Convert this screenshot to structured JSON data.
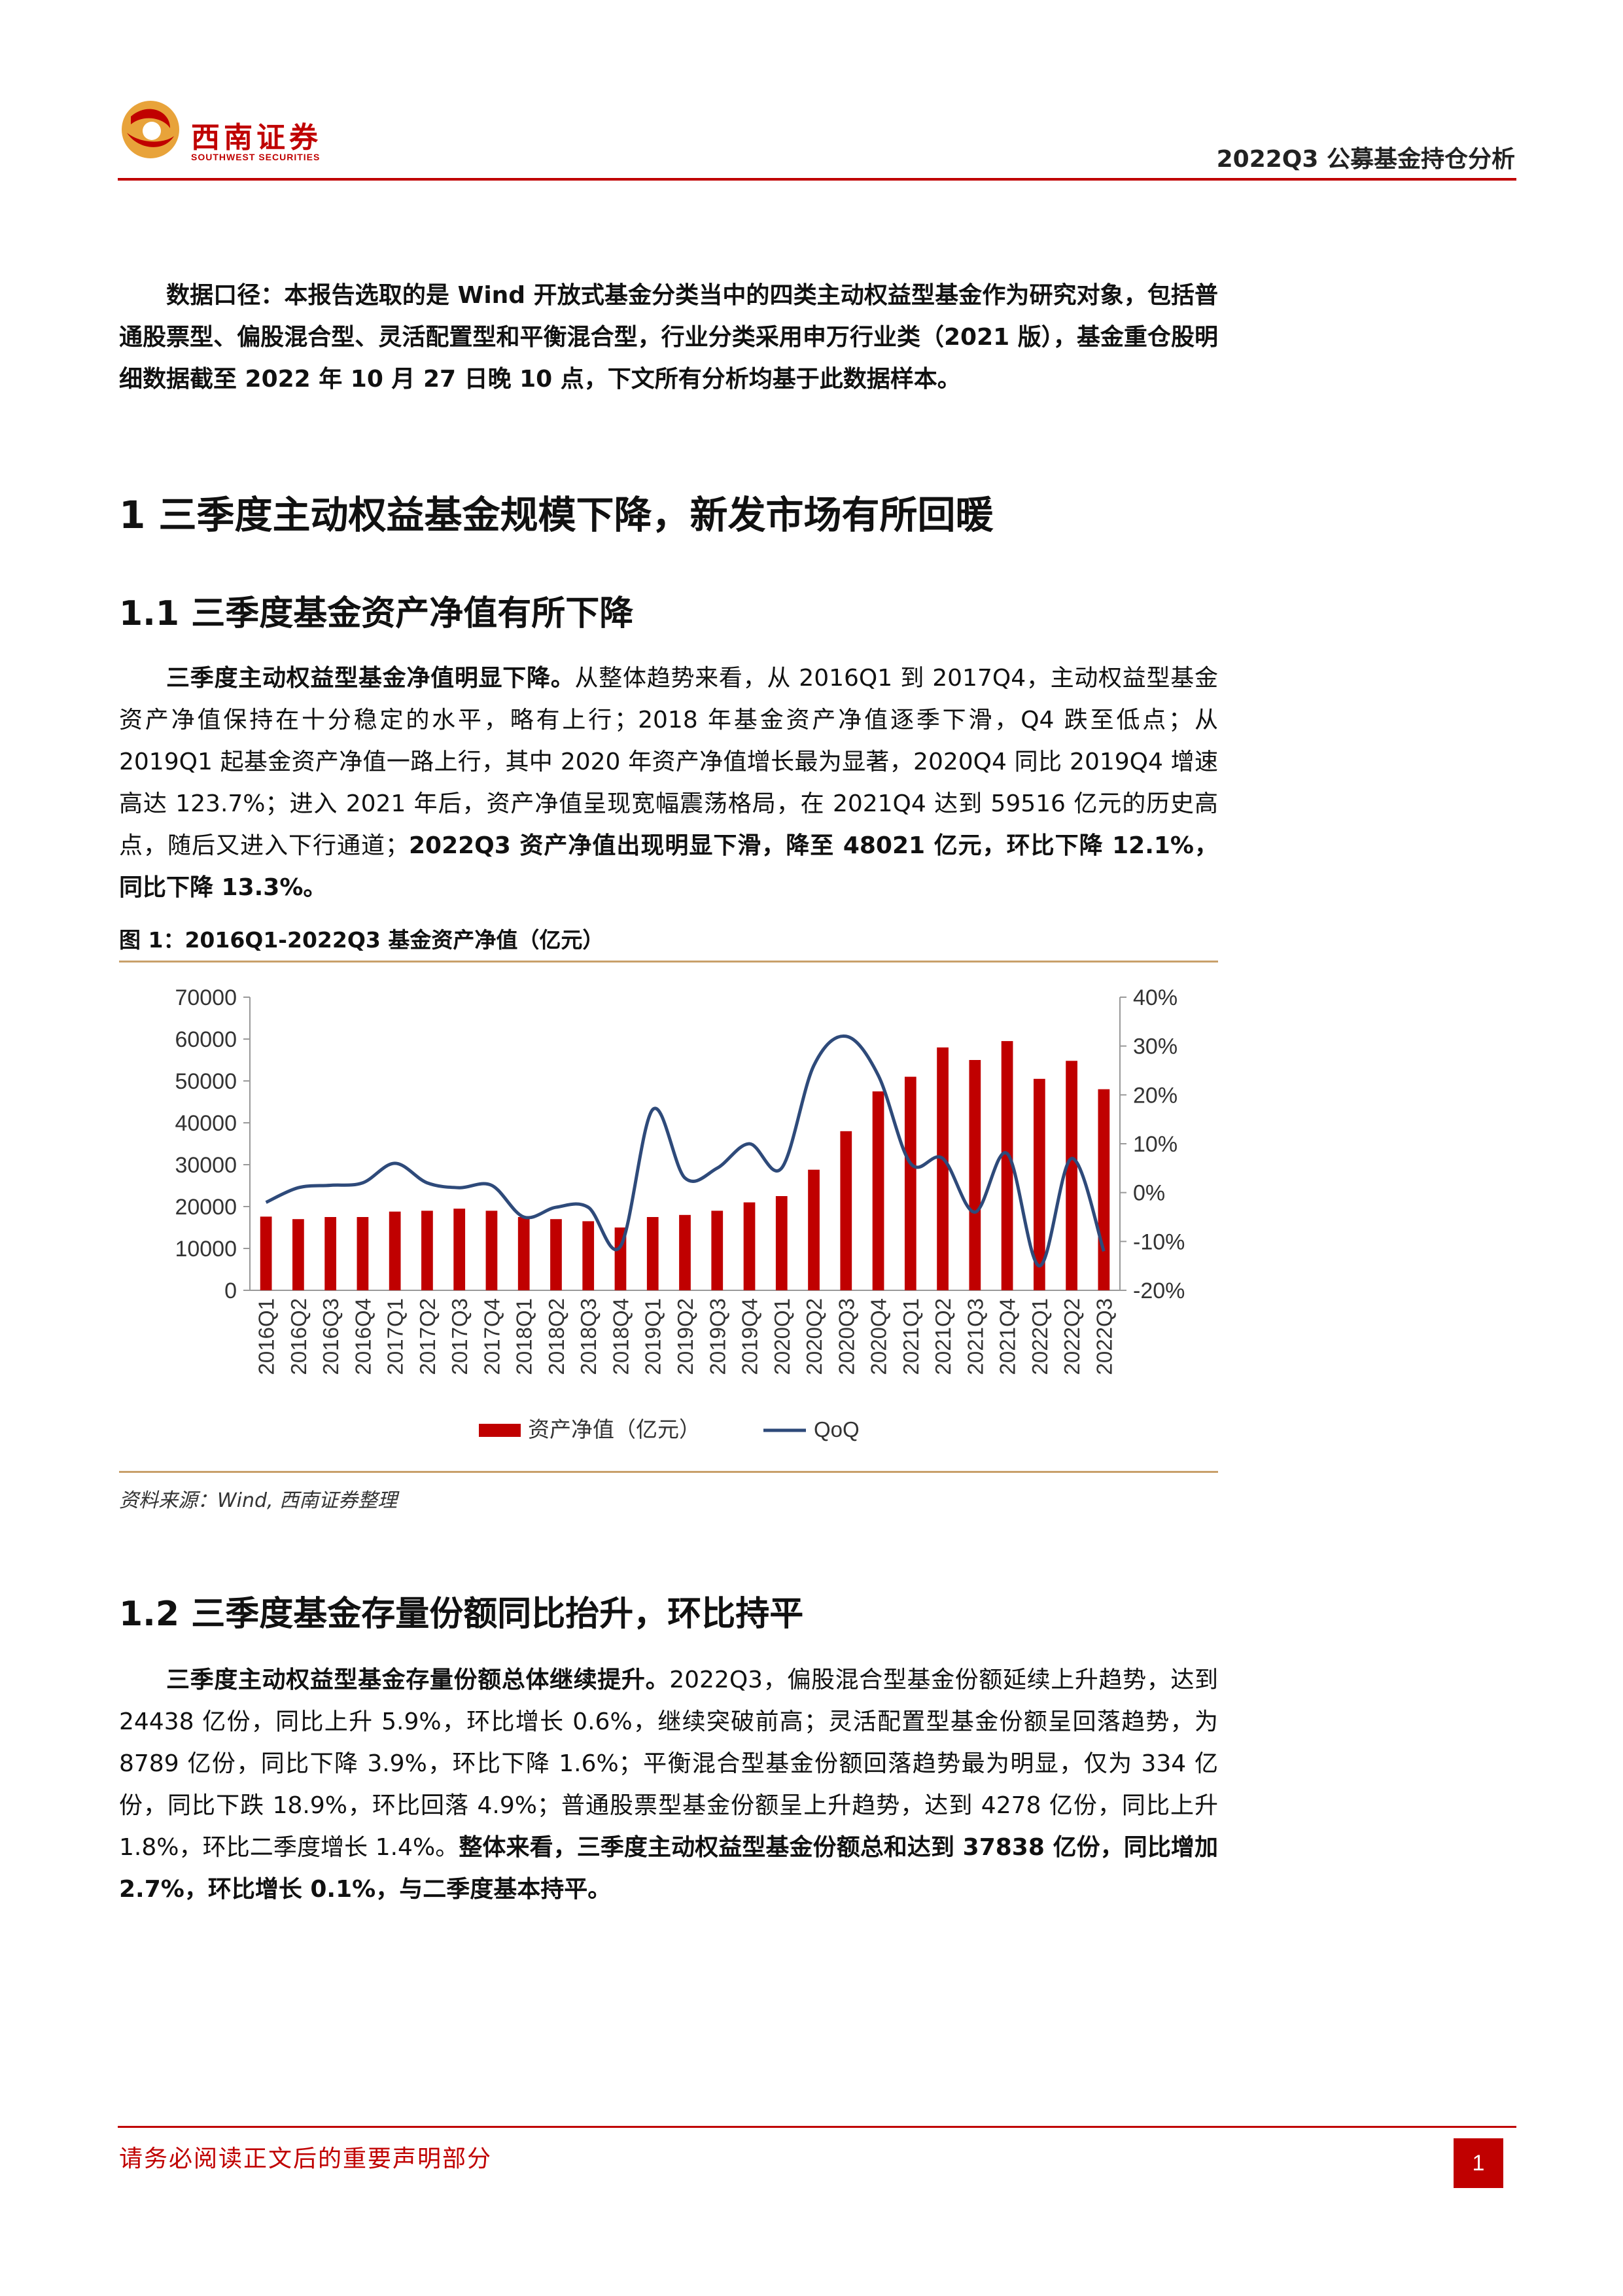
{
  "header": {
    "logo_cn": "西南证券",
    "logo_en": "SOUTHWEST SECURITIES",
    "report_title": "2022Q3 公募基金持仓分析"
  },
  "intro": {
    "text": "数据口径：本报告选取的是 Wind 开放式基金分类当中的四类主动权益型基金作为研究对象，包括普通股票型、偏股混合型、灵活配置型和平衡混合型，行业分类采用申万行业类（2021 版），基金重仓股明细数据截至 2022 年 10 月 27 日晚 10 点，下文所有分析均基于此数据样本。"
  },
  "section1": {
    "title": "1  三季度主动权益基金规模下降，新发市场有所回暖"
  },
  "section1_1": {
    "title": "1.1 三季度基金资产净值有所下降",
    "lead": "三季度主动权益型基金净值明显下降。",
    "body": "从整体趋势来看，从 2016Q1 到 2017Q4，主动权益型基金资产净值保持在十分稳定的水平，略有上行；2018 年基金资产净值逐季下滑，Q4 跌至低点；从 2019Q1 起基金资产净值一路上行，其中 2020 年资产净值增长最为显著，2020Q4 同比 2019Q4 增速高达 123.7%；进入 2021 年后，资产净值呈现宽幅震荡格局，在 2021Q4 达到 59516 亿元的历史高点，随后又进入下行通道；",
    "tail": "2022Q3 资产净值出现明显下滑，降至 48021 亿元，环比下降 12.1%，同比下降 13.3%。"
  },
  "figure1": {
    "title": "图 1：2016Q1-2022Q3 基金资产净值（亿元）",
    "source": "资料来源：Wind, 西南证券整理"
  },
  "chart_data": {
    "type": "bar",
    "categories": [
      "2016Q1",
      "2016Q2",
      "2016Q3",
      "2016Q4",
      "2017Q1",
      "2017Q2",
      "2017Q3",
      "2017Q4",
      "2018Q1",
      "2018Q2",
      "2018Q3",
      "2018Q4",
      "2019Q1",
      "2019Q2",
      "2019Q3",
      "2019Q4",
      "2020Q1",
      "2020Q2",
      "2020Q3",
      "2020Q4",
      "2021Q1",
      "2021Q2",
      "2021Q3",
      "2021Q4",
      "2022Q1",
      "2022Q2",
      "2022Q3"
    ],
    "series": [
      {
        "name": "资产净值（亿元）",
        "type": "bar",
        "axis": "left",
        "color": "#c00000",
        "values": [
          17600,
          17000,
          17500,
          17500,
          18800,
          19000,
          19500,
          19000,
          17500,
          17000,
          16500,
          15000,
          17500,
          18000,
          19000,
          21000,
          22500,
          28800,
          38000,
          47500,
          51000,
          58000,
          55000,
          59516,
          50500,
          54800,
          48021
        ]
      },
      {
        "name": "QoQ",
        "type": "line",
        "axis": "right",
        "color": "#2e4a7a",
        "values": [
          -2,
          1,
          1.5,
          2,
          6,
          2,
          1,
          1.5,
          -5,
          -3,
          -3,
          -11,
          17,
          3,
          5,
          10,
          5,
          26,
          32,
          24,
          6,
          7,
          -4,
          8,
          -15,
          7,
          -12
        ]
      }
    ],
    "ylim_left": [
      0,
      70000
    ],
    "yticks_left": [
      "0",
      "10000",
      "20000",
      "30000",
      "40000",
      "50000",
      "60000",
      "70000"
    ],
    "ylim_right": [
      -20,
      40
    ],
    "yticks_right": [
      "-20%",
      "-10%",
      "0%",
      "10%",
      "20%",
      "30%",
      "40%"
    ],
    "legend_position": "bottom"
  },
  "section1_2": {
    "title": "1.2 三季度基金存量份额同比抬升，环比持平",
    "lead": "三季度主动权益型基金存量份额总体继续提升。",
    "body": "2022Q3，偏股混合型基金份额延续上升趋势，达到 24438 亿份，同比上升 5.9%，环比增长 0.6%，继续突破前高；灵活配置型基金份额呈回落趋势，为 8789 亿份，同比下降 3.9%，环比下降 1.6%；平衡混合型基金份额回落趋势最为明显，仅为 334 亿份，同比下跌 18.9%，环比回落 4.9%；普通股票型基金份额呈上升趋势，达到 4278 亿份，同比上升 1.8%，环比二季度增长 1.4%。",
    "tail": "整体来看，三季度主动权益型基金份额总和达到 37838 亿份，同比增加 2.7%，环比增长 0.1%，与二季度基本持平。"
  },
  "footer": {
    "notice": "请务必阅读正文后的重要声明部分",
    "page": "1"
  }
}
